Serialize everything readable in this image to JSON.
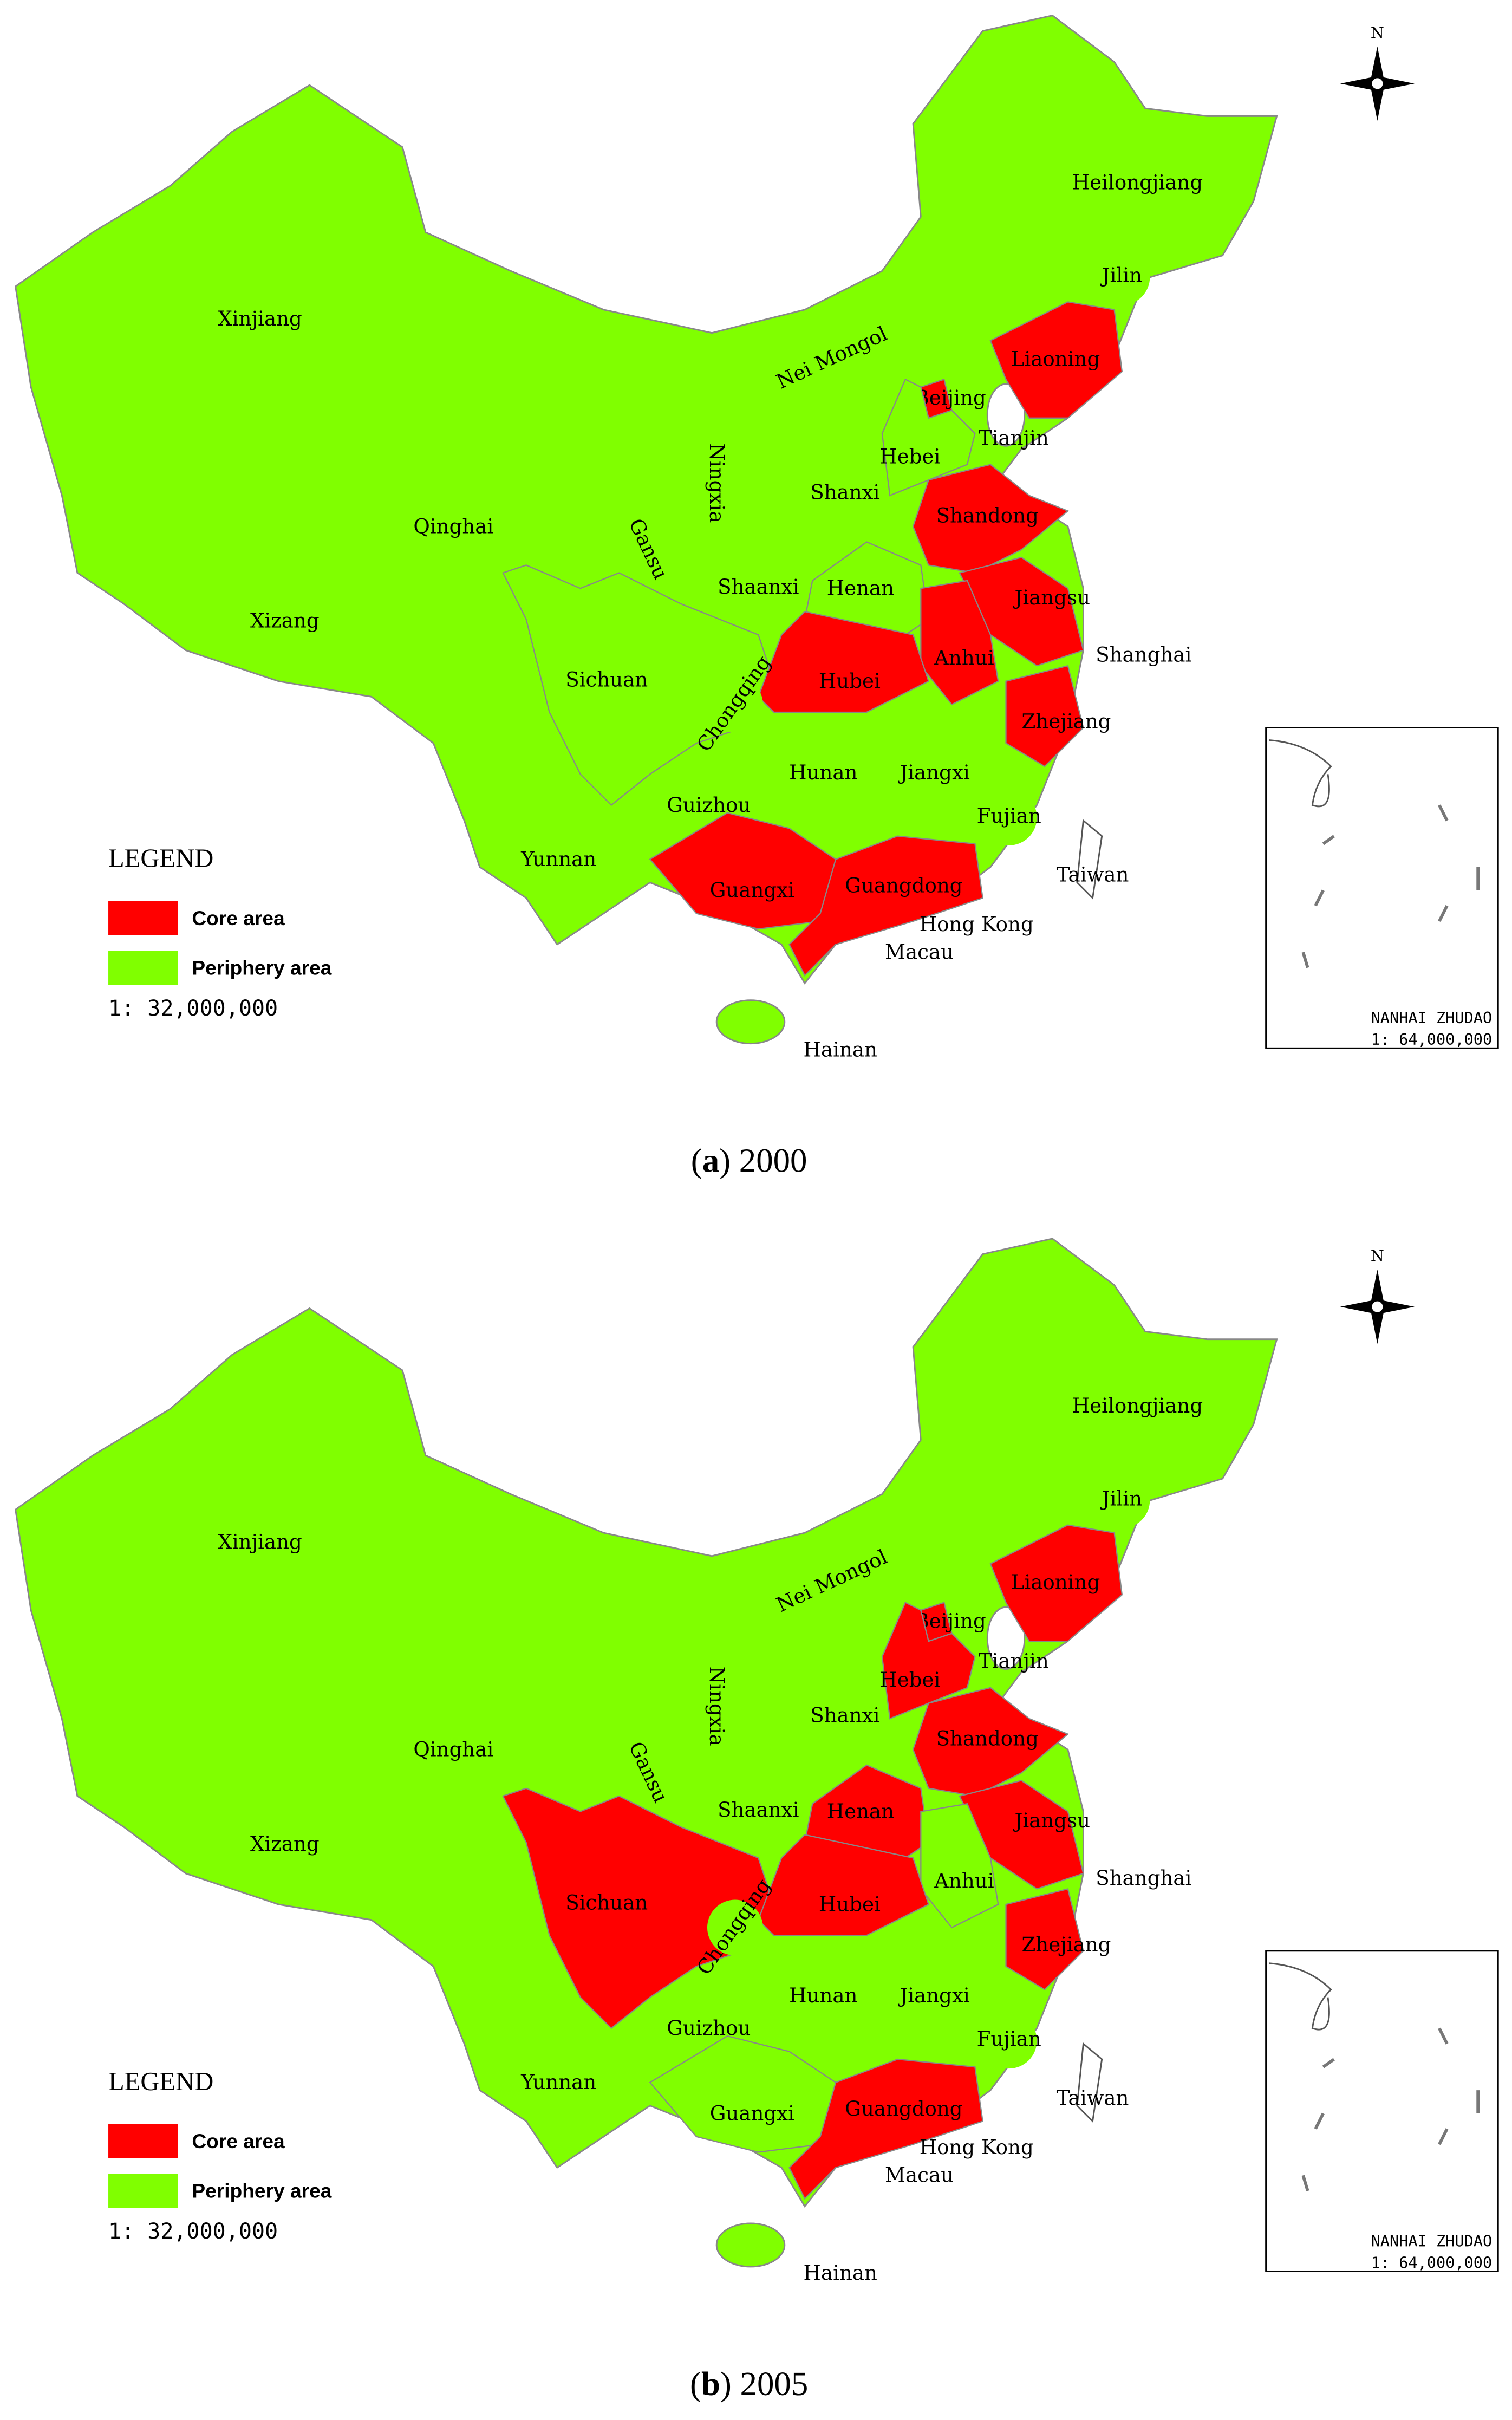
{
  "compass": "N",
  "maps": [
    {
      "caption": [
        "(",
        "a",
        ") 2000"
      ],
      "legend": {
        "title": "LEGEND",
        "items": [
          {
            "label": "Core area",
            "color": "#ff0000"
          },
          {
            "label": "Periphery area",
            "color": "#80ff00"
          }
        ],
        "scale": "1: 32,000,000"
      },
      "inset": {
        "label": "NANHAI ZHUDAO",
        "scale": "1: 64,000,000"
      },
      "provinces": [
        {
          "name": "Xinjiang",
          "core": false
        },
        {
          "name": "Heilongjiang",
          "core": false
        },
        {
          "name": "Jilin",
          "core": false
        },
        {
          "name": "Liaoning",
          "core": true
        },
        {
          "name": "Nei Mongol",
          "core": false
        },
        {
          "name": "Beijing",
          "core": true
        },
        {
          "name": "Tianjin",
          "core": false
        },
        {
          "name": "Hebei",
          "core": false
        },
        {
          "name": "Shanxi",
          "core": false
        },
        {
          "name": "Ningxia",
          "core": false
        },
        {
          "name": "Qinghai",
          "core": false
        },
        {
          "name": "Gansu",
          "core": false
        },
        {
          "name": "Shandong",
          "core": true
        },
        {
          "name": "Shaanxi",
          "core": false
        },
        {
          "name": "Henan",
          "core": false
        },
        {
          "name": "Jiangsu",
          "core": true
        },
        {
          "name": "Xizang",
          "core": false
        },
        {
          "name": "Anhui",
          "core": true
        },
        {
          "name": "Shanghai",
          "core": false
        },
        {
          "name": "Sichuan",
          "core": false
        },
        {
          "name": "Hubei",
          "core": true
        },
        {
          "name": "Chongqing",
          "core": false
        },
        {
          "name": "Zhejiang",
          "core": true
        },
        {
          "name": "Hunan",
          "core": false
        },
        {
          "name": "Jiangxi",
          "core": false
        },
        {
          "name": "Guizhou",
          "core": false
        },
        {
          "name": "Fujian",
          "core": false
        },
        {
          "name": "Yunnan",
          "core": false
        },
        {
          "name": "Taiwan",
          "core": false
        },
        {
          "name": "Guangxi",
          "core": true
        },
        {
          "name": "Guangdong",
          "core": true
        },
        {
          "name": "Hong Kong",
          "core": false
        },
        {
          "name": "Macau",
          "core": false
        },
        {
          "name": "Hainan",
          "core": false
        }
      ]
    },
    {
      "caption": [
        "(",
        "b",
        ") 2005"
      ],
      "legend": {
        "title": "LEGEND",
        "items": [
          {
            "label": "Core area",
            "color": "#ff0000"
          },
          {
            "label": "Periphery area",
            "color": "#80ff00"
          }
        ],
        "scale": "1: 32,000,000"
      },
      "inset": {
        "label": "NANHAI ZHUDAO",
        "scale": "1: 64,000,000"
      },
      "provinces": [
        {
          "name": "Xinjiang",
          "core": false
        },
        {
          "name": "Heilongjiang",
          "core": false
        },
        {
          "name": "Jilin",
          "core": false
        },
        {
          "name": "Liaoning",
          "core": true
        },
        {
          "name": "Nei Mongol",
          "core": false
        },
        {
          "name": "Beijing",
          "core": true
        },
        {
          "name": "Tianjin",
          "core": false
        },
        {
          "name": "Hebei",
          "core": true
        },
        {
          "name": "Shanxi",
          "core": false
        },
        {
          "name": "Ningxia",
          "core": false
        },
        {
          "name": "Qinghai",
          "core": false
        },
        {
          "name": "Gansu",
          "core": false
        },
        {
          "name": "Shandong",
          "core": true
        },
        {
          "name": "Shaanxi",
          "core": false
        },
        {
          "name": "Henan",
          "core": true
        },
        {
          "name": "Jiangsu",
          "core": true
        },
        {
          "name": "Xizang",
          "core": false
        },
        {
          "name": "Anhui",
          "core": false
        },
        {
          "name": "Shanghai",
          "core": false
        },
        {
          "name": "Sichuan",
          "core": true
        },
        {
          "name": "Hubei",
          "core": true
        },
        {
          "name": "Chongqing",
          "core": false
        },
        {
          "name": "Zhejiang",
          "core": true
        },
        {
          "name": "Hunan",
          "core": false
        },
        {
          "name": "Jiangxi",
          "core": false
        },
        {
          "name": "Guizhou",
          "core": false
        },
        {
          "name": "Fujian",
          "core": false
        },
        {
          "name": "Yunnan",
          "core": false
        },
        {
          "name": "Taiwan",
          "core": false
        },
        {
          "name": "Guangxi",
          "core": false
        },
        {
          "name": "Guangdong",
          "core": true
        },
        {
          "name": "Hong Kong",
          "core": false
        },
        {
          "name": "Macau",
          "core": false
        },
        {
          "name": "Hainan",
          "core": false
        }
      ]
    }
  ]
}
